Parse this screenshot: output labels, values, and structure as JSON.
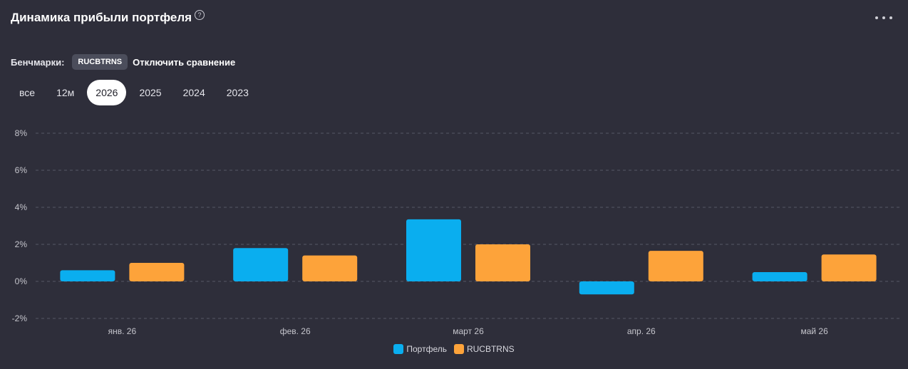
{
  "header": {
    "title": "Динамика прибыли портфеля",
    "help_icon": "question-circle-icon",
    "help_glyph": "?",
    "more_icon": "ellipsis-icon"
  },
  "benchmarks": {
    "label": "Бенчмарки:",
    "chip": "RUCBTRNS",
    "disable_label": "Отключить сравнение"
  },
  "periods": [
    {
      "label": "все",
      "active": false
    },
    {
      "label": "12м",
      "active": false
    },
    {
      "label": "2026",
      "active": true
    },
    {
      "label": "2025",
      "active": false
    },
    {
      "label": "2024",
      "active": false
    },
    {
      "label": "2023",
      "active": false
    }
  ],
  "chart_data": {
    "type": "bar",
    "categories": [
      "янв. 26",
      "фев. 26",
      "март 26",
      "апр. 26",
      "май 26"
    ],
    "series": [
      {
        "name": "Портфель",
        "color": "#0aaeef",
        "values": [
          0.6,
          1.8,
          3.35,
          -0.7,
          0.5
        ]
      },
      {
        "name": "RUCBTRNS",
        "color": "#fda33a",
        "values": [
          1.0,
          1.4,
          2.0,
          1.65,
          1.45
        ]
      }
    ],
    "ylim": [
      -2,
      8
    ],
    "yticks": [
      -2,
      0,
      2,
      4,
      6,
      8
    ],
    "ytick_labels": [
      "-2%",
      "0%",
      "2%",
      "4%",
      "6%",
      "8%"
    ],
    "xlabel": "",
    "ylabel": "",
    "grid": true,
    "legend_position": "bottom-center"
  },
  "colors": {
    "background": "#2e2e3a",
    "grid": "#555866",
    "axis_text": "#c5c5cc"
  }
}
